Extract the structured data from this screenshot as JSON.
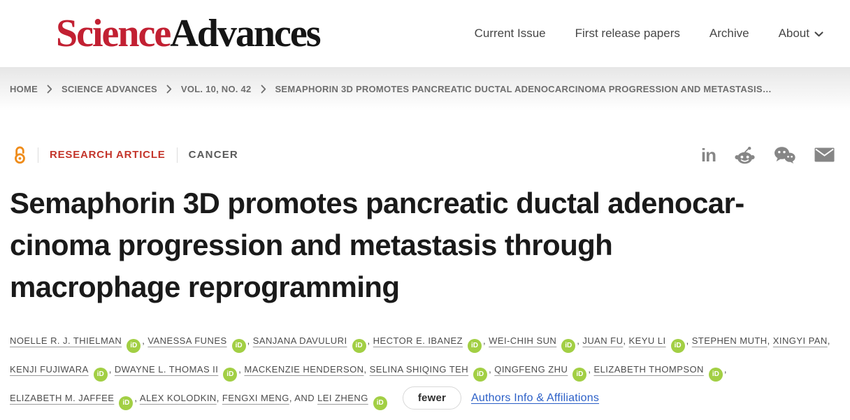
{
  "header": {
    "logo": {
      "science": "Science",
      "advances": "Advances"
    },
    "nav": [
      {
        "label": "Current Issue",
        "chevron": false
      },
      {
        "label": "First release papers",
        "chevron": false
      },
      {
        "label": "Archive",
        "chevron": false
      },
      {
        "label": "About",
        "chevron": true
      }
    ]
  },
  "breadcrumb": {
    "items": [
      "HOME",
      "SCIENCE ADVANCES",
      "VOL. 10, NO. 42",
      "SEMAPHORIN 3D PROMOTES PANCREATIC DUCTAL ADENOCARCINOMA PROGRESSION AND METASTASIS…"
    ]
  },
  "meta": {
    "open_access_icon": "open-access-icon",
    "article_type": "RESEARCH ARTICLE",
    "category": "CANCER",
    "share_icons": [
      "linkedin-icon",
      "reddit-icon",
      "wechat-icon",
      "email-icon"
    ]
  },
  "article": {
    "title_full": "Semaphorin 3D promotes pancreatic ductal adenocarcinoma progression and metastasis through macrophage reprogramming",
    "title_lines": [
      "Semaphorin 3D promotes pancreatic ductal adenocar-",
      "cinoma progression and metastasis through",
      "macrophage reprogramming"
    ]
  },
  "authors": {
    "orcid_badge_label": "iD",
    "list": [
      {
        "name": "NOELLE R. J. THIELMAN",
        "orcid": true
      },
      {
        "name": "VANESSA FUNES",
        "orcid": true
      },
      {
        "name": "SANJANA DAVULURI",
        "orcid": true
      },
      {
        "name": "HECTOR E. IBANEZ",
        "orcid": true
      },
      {
        "name": "WEI-CHIH SUN",
        "orcid": true
      },
      {
        "name": "JUAN FU",
        "orcid": false
      },
      {
        "name": "KEYU LI",
        "orcid": true
      },
      {
        "name": "STEPHEN MUTH",
        "orcid": false
      },
      {
        "name": "XINGYI PAN",
        "orcid": false
      },
      {
        "name": "KENJI FUJIWARA",
        "orcid": true
      },
      {
        "name": "DWAYNE L. THOMAS II",
        "orcid": true
      },
      {
        "name": "MACKENZIE HENDERSON",
        "orcid": false
      },
      {
        "name": "SELINA SHIQING TEH",
        "orcid": true
      },
      {
        "name": "QINGFENG ZHU",
        "orcid": true
      },
      {
        "name": "ELIZABETH THOMPSON",
        "orcid": true
      },
      {
        "name": "ELIZABETH M. JAFFEE",
        "orcid": true
      },
      {
        "name": "ALEX KOLODKIN",
        "orcid": false
      },
      {
        "name": "FENGXI MENG",
        "orcid": false
      },
      {
        "name": "LEI ZHENG",
        "orcid": true,
        "prefix": "AND "
      }
    ],
    "fewer_button": "fewer",
    "affiliations_link": "Authors Info & Affiliations"
  },
  "colors": {
    "logo_red": "#c22032",
    "article_type_red": "#c4352b",
    "orcid_green": "#a2cf44",
    "open_access_orange": "#ef8c1a",
    "link_blue": "#2b5fc7"
  }
}
